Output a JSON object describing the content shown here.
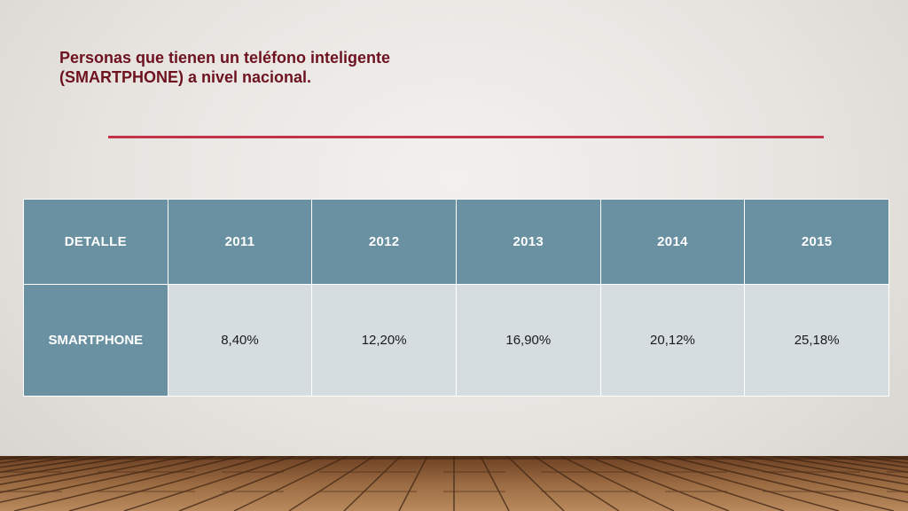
{
  "slide": {
    "title_line1": "Personas que tienen un teléfono inteligente",
    "title_line2": "(SMARTPHONE) a nivel nacional."
  },
  "table": {
    "headers": [
      "DETALLE",
      "2011",
      "2012",
      "2013",
      "2014",
      "2015"
    ],
    "rows": [
      {
        "label": "SMARTPHONE",
        "values": [
          "8,40%",
          "12,20%",
          "16,90%",
          "20,12%",
          "25,18%"
        ]
      }
    ]
  },
  "colors": {
    "title": "#6e1220",
    "rule": "#c2344a",
    "header_fill": "#6991a2",
    "cell_fill": "#d6dde1",
    "floor_wood": "#8a5a35"
  }
}
